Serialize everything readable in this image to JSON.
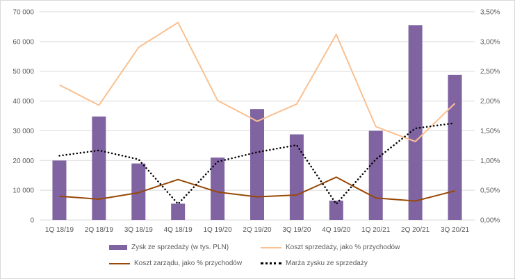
{
  "chart_data": {
    "type": "bar",
    "categories": [
      "1Q 18/19",
      "2Q 18/19",
      "3Q 18/19",
      "4Q 18/19",
      "1Q 19/20",
      "2Q 19/20",
      "3Q 19/20",
      "4Q 19/20",
      "1Q 20/21",
      "2Q 20/21",
      "3Q 20/21"
    ],
    "left_axis": {
      "ylim": [
        0,
        70000
      ],
      "ticks": [
        "0",
        "10 000",
        "20 000",
        "30 000",
        "40 000",
        "50 000",
        "60 000",
        "70 000"
      ]
    },
    "right_axis": {
      "ylim": [
        0,
        3.5
      ],
      "ticks": [
        "0,00%",
        "0,50%",
        "1,00%",
        "1,50%",
        "2,00%",
        "2,50%",
        "3,00%",
        "3,50%"
      ]
    },
    "grid": true,
    "legend_position": "bottom",
    "series": [
      {
        "name": "Zysk ze sprzedaży (w tys. PLN)",
        "type": "bar",
        "axis": "left",
        "color": "#8064a2",
        "values": [
          20000,
          34800,
          19000,
          5500,
          21000,
          37300,
          28800,
          6500,
          30000,
          65500,
          48800
        ]
      },
      {
        "name": "Koszt sprzedaży, jako % przychodów",
        "type": "line",
        "axis": "right",
        "color": "#fac090",
        "values": [
          2.27,
          1.93,
          2.9,
          3.32,
          2.01,
          1.66,
          1.95,
          3.12,
          1.57,
          1.32,
          1.96
        ]
      },
      {
        "name": "Koszt zarządu, jako % przychodów",
        "type": "line",
        "axis": "right",
        "color": "#984807",
        "values": [
          0.4,
          0.35,
          0.46,
          0.68,
          0.47,
          0.39,
          0.42,
          0.72,
          0.37,
          0.32,
          0.49
        ]
      },
      {
        "name": "Marża zysku ze sprzedaży",
        "type": "line",
        "axis": "right",
        "color": "#000000",
        "dotted": true,
        "values": [
          1.08,
          1.17,
          1.02,
          0.27,
          0.98,
          1.14,
          1.26,
          0.27,
          1.02,
          1.54,
          1.63
        ]
      }
    ]
  }
}
